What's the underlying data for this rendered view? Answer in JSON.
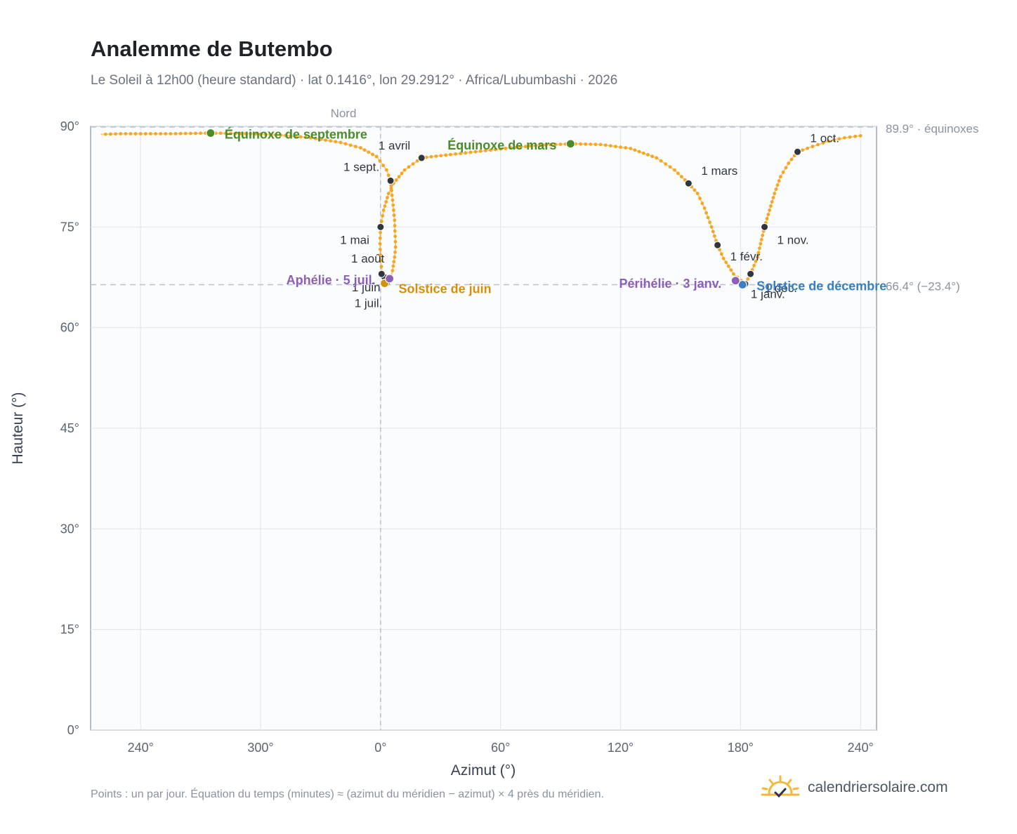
{
  "header": {
    "title": "Analemme de Butembo",
    "subtitle": "Le Soleil à 12h00 (heure standard) · lat 0.1416°, lon 29.2912° · Africa/Lubumbashi · 2026"
  },
  "footer": {
    "note": "Points : un par jour. Équation du temps (minutes) ≈ (azimut du méridien − azimut) × 4 près du méridien.",
    "brand": "calendriersolaire.com",
    "brand_icon": "sun-check-icon"
  },
  "colors": {
    "curve": "#f5a623",
    "month_marker": "#2f3640",
    "equinox": "#4a8c2a",
    "solstice_june": "#d4900a",
    "solstice_december": "#3a7fc1",
    "apsis": "#8b5fb5"
  },
  "chart_data": {
    "type": "scatter",
    "title": "Analemme de Butembo",
    "xlabel": "Azimut (°)",
    "ylabel": "Hauteur (°)",
    "x_ticks": [
      "240°",
      "300°",
      "0°",
      "60°",
      "120°",
      "180°",
      "240°"
    ],
    "y_ticks": [
      "0°",
      "15°",
      "30°",
      "45°",
      "60°",
      "75°",
      "90°"
    ],
    "ylim": [
      0,
      90
    ],
    "grid": true,
    "north_label": "Nord",
    "reference_lines": [
      {
        "value": 89.9,
        "label": "89.9° · équinoxes"
      },
      {
        "value": 66.4,
        "label": "66.4° (−23.4°)"
      }
    ],
    "month_markers": [
      {
        "label": "1 janv.",
        "az": 182.3,
        "alt": 66.5
      },
      {
        "label": "1 févr.",
        "az": 168.5,
        "alt": 72.3
      },
      {
        "label": "1 mars",
        "az": 154.0,
        "alt": 81.5
      },
      {
        "label": "1 avril",
        "az": 20.5,
        "alt": 85.3
      },
      {
        "label": "1 mai",
        "az": 0.0,
        "alt": 75.0
      },
      {
        "label": "1 juin",
        "az": 2.0,
        "alt": 67.5
      },
      {
        "label": "1 juil.",
        "az": 3.0,
        "alt": 66.6
      },
      {
        "label": "1 août",
        "az": 0.5,
        "alt": 68.0
      },
      {
        "label": "1 sept.",
        "az": 5.0,
        "alt": 81.9
      },
      {
        "label": "1 oct.",
        "az": 208.5,
        "alt": 86.2
      },
      {
        "label": "1 nov.",
        "az": 192.0,
        "alt": 75.0
      },
      {
        "label": "1 déc.",
        "az": 185.0,
        "alt": 68.0
      }
    ],
    "events": [
      {
        "label": "Équinoxe de septembre",
        "az": -85.0,
        "alt": 89.0,
        "kind": "equinox"
      },
      {
        "label": "Équinoxe de mars",
        "az": 95.0,
        "alt": 87.4,
        "kind": "equinox"
      },
      {
        "label": "Solstice de juin",
        "az": 2.0,
        "alt": 66.6,
        "kind": "solstice_june"
      },
      {
        "label": "Solstice de décembre",
        "az": 181.0,
        "alt": 66.4,
        "kind": "solstice_december"
      },
      {
        "label": "Aphélie · 5 juil.",
        "az": 4.5,
        "alt": 67.3,
        "kind": "apsis"
      },
      {
        "label": "Périhélie · 3 janv.",
        "az": 177.5,
        "alt": 67.0,
        "kind": "apsis"
      }
    ],
    "series": [
      {
        "path_points": [
          [
            182.3,
            66.5
          ],
          [
            176.5,
            68.0
          ],
          [
            171.5,
            70.3
          ],
          [
            168.5,
            72.3
          ],
          [
            165.5,
            75.0
          ],
          [
            162.0,
            77.8
          ],
          [
            158.5,
            80.0
          ],
          [
            154.0,
            81.5
          ],
          [
            147.0,
            83.5
          ],
          [
            138.0,
            85.3
          ],
          [
            125.0,
            86.7
          ],
          [
            110.0,
            87.3
          ],
          [
            95.0,
            87.4
          ],
          [
            80.0,
            87.2
          ],
          [
            65.0,
            86.8
          ],
          [
            50.0,
            86.3
          ],
          [
            35.0,
            85.8
          ],
          [
            20.5,
            85.3
          ],
          [
            12.0,
            83.5
          ],
          [
            6.5,
            81.5
          ],
          [
            4.0,
            80.0
          ],
          [
            1.5,
            77.5
          ],
          [
            0.0,
            75.0
          ],
          [
            -0.3,
            72.5
          ],
          [
            0.0,
            70.0
          ],
          [
            0.8,
            68.2
          ],
          [
            2.0,
            67.5
          ],
          [
            3.0,
            66.6
          ],
          [
            4.5,
            67.0
          ],
          [
            6.0,
            68.5
          ],
          [
            7.0,
            70.5
          ],
          [
            7.5,
            72.0
          ],
          [
            7.0,
            76.0
          ],
          [
            6.0,
            79.0
          ],
          [
            5.0,
            81.9
          ],
          [
            3.0,
            83.5
          ],
          [
            -2.0,
            85.5
          ],
          [
            -10.0,
            86.8
          ],
          [
            -20.0,
            87.6
          ],
          [
            -35.0,
            88.3
          ],
          [
            -50.0,
            88.7
          ],
          [
            -65.0,
            88.9
          ],
          [
            -85.0,
            89.0
          ],
          [
            -105.0,
            88.9
          ],
          [
            -130.0,
            88.9
          ],
          [
            -140.0,
            88.8
          ]
        ],
        "path_points_2": [
          [
            240.0,
            88.6
          ],
          [
            232.0,
            88.3
          ],
          [
            224.0,
            87.8
          ],
          [
            216.0,
            87.0
          ],
          [
            208.5,
            86.2
          ],
          [
            204.0,
            84.5
          ],
          [
            200.0,
            82.5
          ],
          [
            197.0,
            80.0
          ],
          [
            194.5,
            77.5
          ],
          [
            192.0,
            75.0
          ],
          [
            190.0,
            72.5
          ],
          [
            188.5,
            70.5
          ],
          [
            185.0,
            68.0
          ],
          [
            182.3,
            66.5
          ]
        ]
      }
    ]
  }
}
